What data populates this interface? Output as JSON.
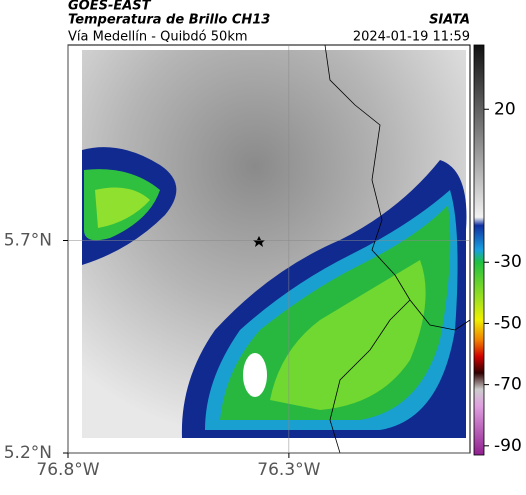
{
  "header": {
    "source": "GOES-EAST",
    "title": "Temperatura de Brillo CH13",
    "subtitle": "Vía Medellín - Quibdó 50km",
    "agency": "SIATA",
    "datetime": "2024-01-19 11:59"
  },
  "map": {
    "xlim": [
      -76.8,
      -75.89
    ],
    "ylim": [
      5.2,
      6.16
    ],
    "xticks": [
      {
        "value": -76.8,
        "label": "76.8°W"
      },
      {
        "value": -76.3,
        "label": "76.3°W"
      }
    ],
    "yticks": [
      {
        "value": 5.2,
        "label": "5.2°N"
      },
      {
        "value": 5.7,
        "label": "5.7°N"
      }
    ],
    "grid": true
  },
  "colorbar": {
    "lim": [
      -93,
      41
    ],
    "ticks": [
      20,
      -30,
      -50,
      -70,
      -90
    ]
  }
}
